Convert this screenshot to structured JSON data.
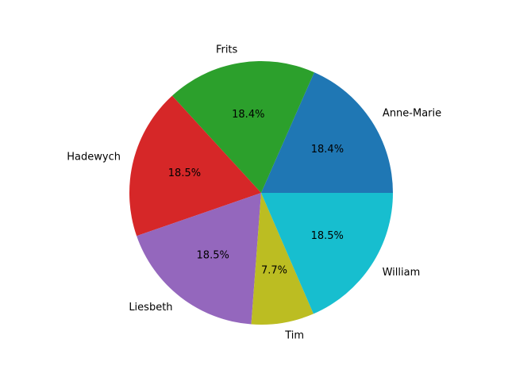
{
  "chart_data": {
    "type": "pie",
    "title": "",
    "start_angle_deg": 0,
    "direction": "counterclockwise",
    "slices": [
      {
        "label": "Anne-Marie",
        "value": 18.4,
        "pct_label": "18.4%",
        "color": "#1f77b4"
      },
      {
        "label": "Frits",
        "value": 18.4,
        "pct_label": "18.4%",
        "color": "#2ca02c"
      },
      {
        "label": "Hadewych",
        "value": 18.5,
        "pct_label": "18.5%",
        "color": "#d62728"
      },
      {
        "label": "Liesbeth",
        "value": 18.5,
        "pct_label": "18.5%",
        "color": "#9467bd"
      },
      {
        "label": "Tim",
        "value": 7.7,
        "pct_label": "7.7%",
        "color": "#bcbd22"
      },
      {
        "label": "William",
        "value": 18.5,
        "pct_label": "18.5%",
        "color": "#17becf"
      }
    ]
  }
}
